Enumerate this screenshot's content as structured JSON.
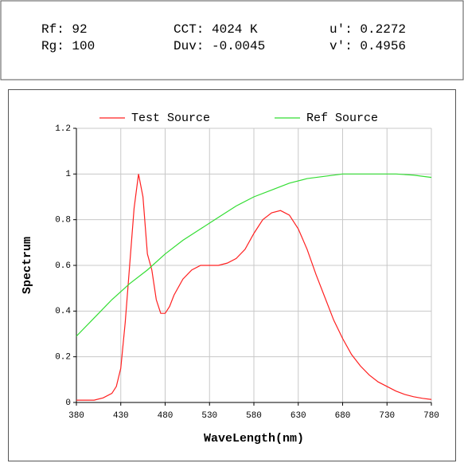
{
  "metrics": [
    {
      "label": "Rf:",
      "value": 92
    },
    {
      "label": "CCT:",
      "value": 4024,
      "unit": "K"
    },
    {
      "label": "u':",
      "value": 0.2272
    },
    {
      "label": "Rg:",
      "value": 100
    },
    {
      "label": "Duv:",
      "value": -0.0045
    },
    {
      "label": "v':",
      "value": 0.4956
    }
  ],
  "chart_data": {
    "type": "line",
    "xlabel": "WaveLength(nm)",
    "ylabel": "Spectrum",
    "xlim": [
      380,
      780
    ],
    "xticks": [
      380,
      430,
      480,
      530,
      580,
      630,
      680,
      730,
      780
    ],
    "ylim": [
      0,
      1.2
    ],
    "yticks": [
      0,
      0.2,
      0.4,
      0.6,
      0.8,
      1,
      1.2
    ],
    "grid": true,
    "legend": "top",
    "series": [
      {
        "name": "Test Source",
        "color": "#ff2020",
        "x": [
          380,
          390,
          400,
          410,
          420,
          425,
          430,
          435,
          440,
          445,
          450,
          455,
          460,
          465,
          470,
          475,
          480,
          485,
          490,
          500,
          510,
          520,
          530,
          540,
          550,
          560,
          570,
          580,
          590,
          600,
          610,
          620,
          630,
          640,
          650,
          660,
          670,
          680,
          690,
          700,
          710,
          720,
          730,
          740,
          750,
          760,
          770,
          780
        ],
        "values": [
          0.01,
          0.01,
          0.01,
          0.02,
          0.04,
          0.07,
          0.15,
          0.35,
          0.6,
          0.85,
          1.0,
          0.9,
          0.65,
          0.58,
          0.45,
          0.39,
          0.39,
          0.42,
          0.47,
          0.54,
          0.58,
          0.6,
          0.6,
          0.6,
          0.61,
          0.63,
          0.67,
          0.74,
          0.8,
          0.83,
          0.84,
          0.82,
          0.76,
          0.67,
          0.56,
          0.46,
          0.36,
          0.28,
          0.21,
          0.16,
          0.12,
          0.09,
          0.07,
          0.05,
          0.035,
          0.025,
          0.018,
          0.013
        ]
      },
      {
        "name": "Ref Source",
        "color": "#33dd33",
        "x": [
          380,
          400,
          420,
          440,
          460,
          480,
          500,
          520,
          540,
          560,
          580,
          600,
          620,
          640,
          660,
          680,
          700,
          720,
          740,
          760,
          780
        ],
        "values": [
          0.29,
          0.37,
          0.45,
          0.52,
          0.58,
          0.65,
          0.71,
          0.76,
          0.81,
          0.86,
          0.9,
          0.93,
          0.96,
          0.98,
          0.99,
          1.0,
          1.0,
          1.0,
          1.0,
          0.995,
          0.985
        ]
      }
    ]
  }
}
